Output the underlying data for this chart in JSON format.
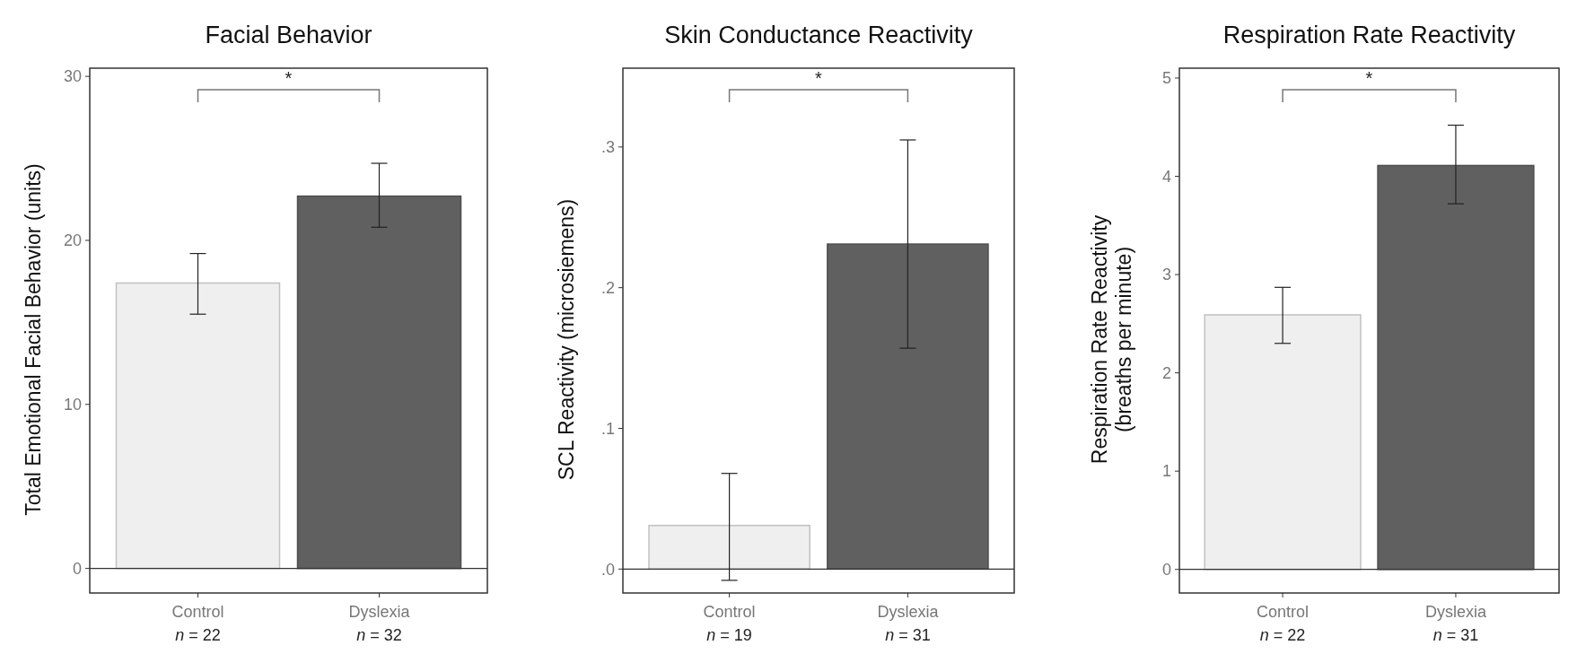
{
  "chart_data": [
    {
      "type": "bar",
      "title": "Facial Behavior",
      "ylabel": "Total Emotional Facial Behavior (units)",
      "categories": [
        "Control\nn = 22",
        "Dyslexia\nn = 32"
      ],
      "values": [
        17.4,
        22.7
      ],
      "colors": [
        "#efefef",
        "#606060"
      ],
      "errors": [
        [
          15.5,
          19.2
        ],
        [
          20.8,
          24.7
        ]
      ],
      "ylim": [
        -1.5,
        30.5
      ],
      "yticks": [
        0,
        10,
        20,
        30
      ],
      "grid": false,
      "ref_lines": [
        {
          "axis": "y",
          "value": 0
        }
      ],
      "annotations": [
        "*"
      ]
    },
    {
      "type": "bar",
      "title": "Skin Conductance Reactivity",
      "ylabel": "SCL Reactivity (microsiemens)",
      "categories": [
        "Control\nn = 19",
        "Dyslexia\nn = 31"
      ],
      "values": [
        0.031,
        0.231
      ],
      "colors": [
        "#efefef",
        "#606060"
      ],
      "errors": [
        [
          -0.008,
          0.068
        ],
        [
          0.157,
          0.305
        ]
      ],
      "ylim": [
        -0.017,
        0.356
      ],
      "yticks": [
        {
          "value": 0,
          "label": ".0"
        },
        {
          "value": 0.1,
          "label": ".1"
        },
        {
          "value": 0.2,
          "label": ".2"
        },
        {
          "value": 0.3,
          "label": ".3"
        }
      ],
      "grid": false,
      "ref_lines": [
        {
          "axis": "y",
          "value": 0
        }
      ],
      "annotations": [
        "*"
      ]
    },
    {
      "type": "bar",
      "title": "Respiration Rate Reactivity",
      "ylabel": "Respiration Rate Reactivity\n(breaths per minute)",
      "categories": [
        "Control\nn = 22",
        "Dyslexia\nn = 31"
      ],
      "values": [
        2.59,
        4.11
      ],
      "colors": [
        "#efefef",
        "#606060"
      ],
      "errors": [
        [
          2.3,
          2.87
        ],
        [
          3.72,
          4.52
        ]
      ],
      "ylim": [
        -0.24,
        5.1
      ],
      "yticks": [
        0,
        1,
        2,
        3,
        4,
        5
      ],
      "grid": false,
      "ref_lines": [
        {
          "axis": "y",
          "value": 0
        }
      ],
      "annotations": [
        "*"
      ]
    }
  ]
}
